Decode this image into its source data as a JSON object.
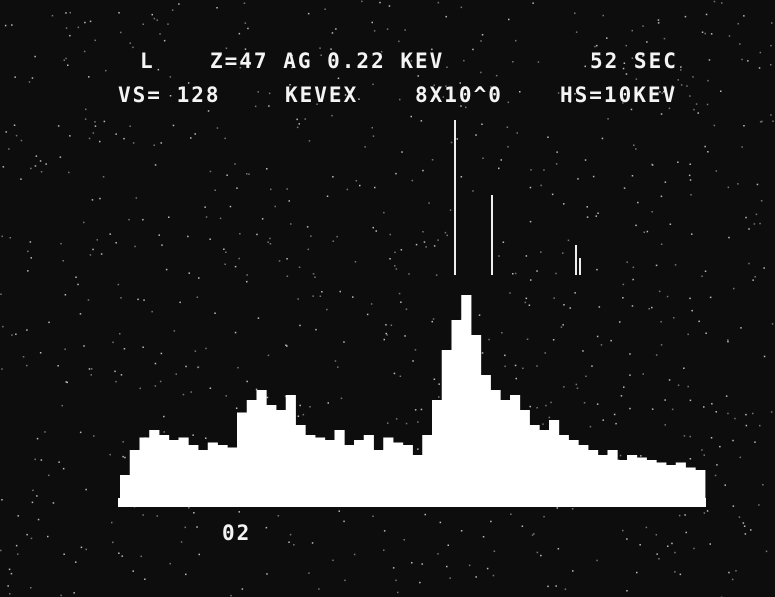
{
  "header": {
    "line1": [
      "L",
      "Z=47 AG 0.22 KEV",
      "52 SEC"
    ],
    "line2": [
      "VS= 128",
      "KEVEX",
      "8X10^0",
      "HS=10KEV"
    ]
  },
  "marker_label": "02",
  "spectrum": {
    "values": [
      10,
      20,
      25,
      28,
      26,
      24,
      25,
      22,
      20,
      23,
      22,
      21,
      35,
      40,
      44,
      38,
      36,
      42,
      30,
      26,
      25,
      24,
      28,
      22,
      24,
      26,
      20,
      25,
      23,
      22,
      18,
      26,
      40,
      60,
      72,
      82,
      66,
      50,
      44,
      40,
      42,
      36,
      30,
      28,
      32,
      26,
      24,
      22,
      20,
      18,
      20,
      16,
      18,
      17,
      16,
      15,
      14,
      15,
      13,
      12
    ],
    "ylim": [
      0,
      100
    ],
    "color": "#ffffff"
  }
}
